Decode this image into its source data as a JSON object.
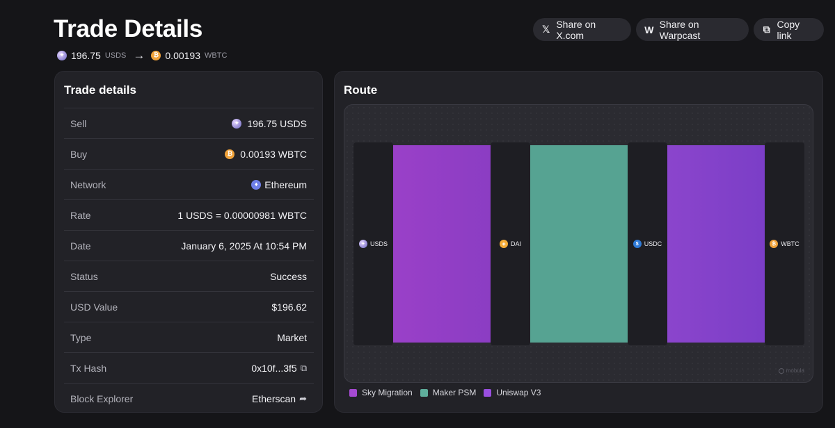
{
  "page": {
    "title": "Trade Details"
  },
  "pair": {
    "sell_amount": "196.75",
    "sell_symbol": "USDS",
    "buy_amount": "0.00193",
    "buy_symbol": "WBTC",
    "arrow_icon": "arrow-right-icon"
  },
  "actions": {
    "share_x": {
      "label": "Share on X.com",
      "icon": "x-logo-icon"
    },
    "share_warpcast": {
      "label": "Share on Warpcast",
      "icon": "warpcast-logo-icon"
    },
    "copy_link": {
      "label": "Copy link",
      "icon": "copy-icon"
    }
  },
  "details": {
    "title": "Trade details",
    "rows": [
      {
        "label": "Sell",
        "value": "196.75 USDS",
        "icon": "usds-token-icon"
      },
      {
        "label": "Buy",
        "value": "0.00193 WBTC",
        "icon": "wbtc-token-icon"
      },
      {
        "label": "Network",
        "value": "Ethereum",
        "icon": "ethereum-icon"
      },
      {
        "label": "Rate",
        "value": "1 USDS = 0.00000981 WBTC"
      },
      {
        "label": "Date",
        "value": "January 6, 2025 At 10:54 PM"
      },
      {
        "label": "Status",
        "value": "Success"
      },
      {
        "label": "USD Value",
        "value": "$196.62"
      },
      {
        "label": "Type",
        "value": "Market"
      },
      {
        "label": "Tx Hash",
        "value": "0x10f...3f5",
        "icon": "copy-icon"
      },
      {
        "label": "Block Explorer",
        "value": "Etherscan",
        "icon": "external-link-icon"
      }
    ]
  },
  "route": {
    "title": "Route",
    "nodes": [
      {
        "symbol": "USDS",
        "icon": "usds-token-icon"
      },
      {
        "symbol": "DAI",
        "icon": "dai-token-icon"
      },
      {
        "symbol": "USDC",
        "icon": "usdc-token-icon"
      },
      {
        "symbol": "WBTC",
        "icon": "wbtc-token-icon"
      }
    ],
    "flows": [
      {
        "from": "USDS",
        "to": "DAI",
        "protocol": "Sky Migration",
        "share_pct": 100
      },
      {
        "from": "DAI",
        "to": "USDC",
        "protocol": "Maker PSM",
        "share_pct": 100
      },
      {
        "from": "USDC",
        "to": "WBTC",
        "protocol": "Uniswap V3",
        "share_pct": 100
      }
    ],
    "watermark": "mobula",
    "legend": [
      {
        "label": "Sky Migration",
        "color": "#a64ad2"
      },
      {
        "label": "Maker PSM",
        "color": "#5fae9c"
      },
      {
        "label": "Uniswap V3",
        "color": "#9a4fe0"
      }
    ]
  },
  "colors": {
    "background": "#151518",
    "panel": "#222227",
    "sky_migration": "#9a40c8",
    "maker_psm": "#56a392",
    "uniswap_v3": "#8b45cc"
  }
}
